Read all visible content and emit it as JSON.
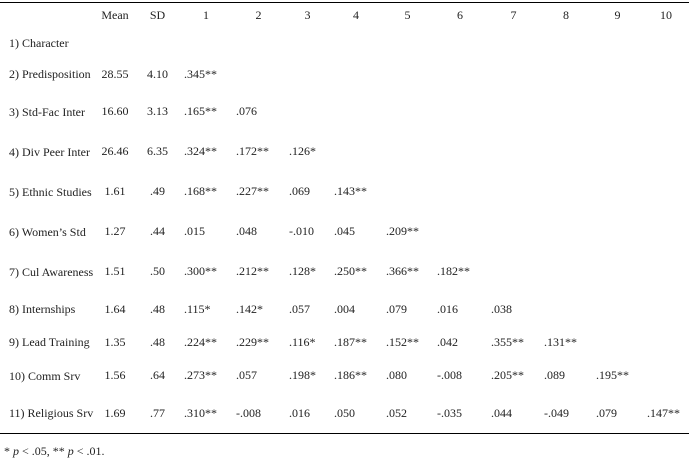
{
  "table": {
    "headers": [
      "",
      "Mean",
      "SD",
      "1",
      "2",
      "3",
      "4",
      "5",
      "6",
      "7",
      "8",
      "9",
      "10"
    ],
    "rows": [
      {
        "label": "1) Character",
        "mean": "",
        "sd": "",
        "r": []
      },
      {
        "label": "2) Predisposition",
        "mean": "28.55",
        "sd": "4.10",
        "r": [
          ".345**"
        ]
      },
      {
        "label": "3) Std-Fac Inter",
        "mean": "16.60",
        "sd": "3.13",
        "r": [
          ".165**",
          ".076"
        ]
      },
      {
        "label": "4) Div Peer Inter",
        "mean": "26.46",
        "sd": "6.35",
        "r": [
          ".324**",
          ".172**",
          ".126*"
        ]
      },
      {
        "label": "5) Ethnic Studies",
        "mean": "1.61",
        "sd": ".49",
        "r": [
          ".168**",
          ".227**",
          ".069",
          ".143**"
        ]
      },
      {
        "label": "6) Women’s Std",
        "mean": "1.27",
        "sd": ".44",
        "r": [
          ".015",
          ".048",
          "-.010",
          ".045",
          ".209**"
        ]
      },
      {
        "label": "7) Cul Awareness",
        "mean": "1.51",
        "sd": ".50",
        "r": [
          ".300**",
          ".212**",
          ".128*",
          ".250**",
          ".366**",
          ".182**"
        ]
      },
      {
        "label": "8) Internships",
        "mean": "1.64",
        "sd": ".48",
        "r": [
          ".115*",
          ".142*",
          ".057",
          ".004",
          ".079",
          ".016",
          ".038"
        ]
      },
      {
        "label": "9) Lead Training",
        "mean": "1.35",
        "sd": ".48",
        "r": [
          ".224**",
          ".229**",
          ".116*",
          ".187**",
          ".152**",
          ".042",
          ".355**",
          ".131**"
        ]
      },
      {
        "label": "10) Comm Srv",
        "mean": "1.56",
        "sd": ".64",
        "r": [
          ".273**",
          ".057",
          ".198*",
          ".186**",
          ".080",
          "-.008",
          ".205**",
          ".089",
          ".195**"
        ]
      },
      {
        "label": "11) Religious Srv",
        "mean": "1.69",
        "sd": ".77",
        "r": [
          ".310**",
          "-.008",
          ".016",
          ".050",
          ".052",
          "-.035",
          ".044",
          "-.049",
          ".079",
          ".147**"
        ]
      }
    ]
  },
  "footnote": {
    "p1_symbol": "* ",
    "p1_var": "p",
    "p1_text": " < .05, ",
    "p2_symbol": "** ",
    "p2_var": "p",
    "p2_text": " < .01."
  }
}
